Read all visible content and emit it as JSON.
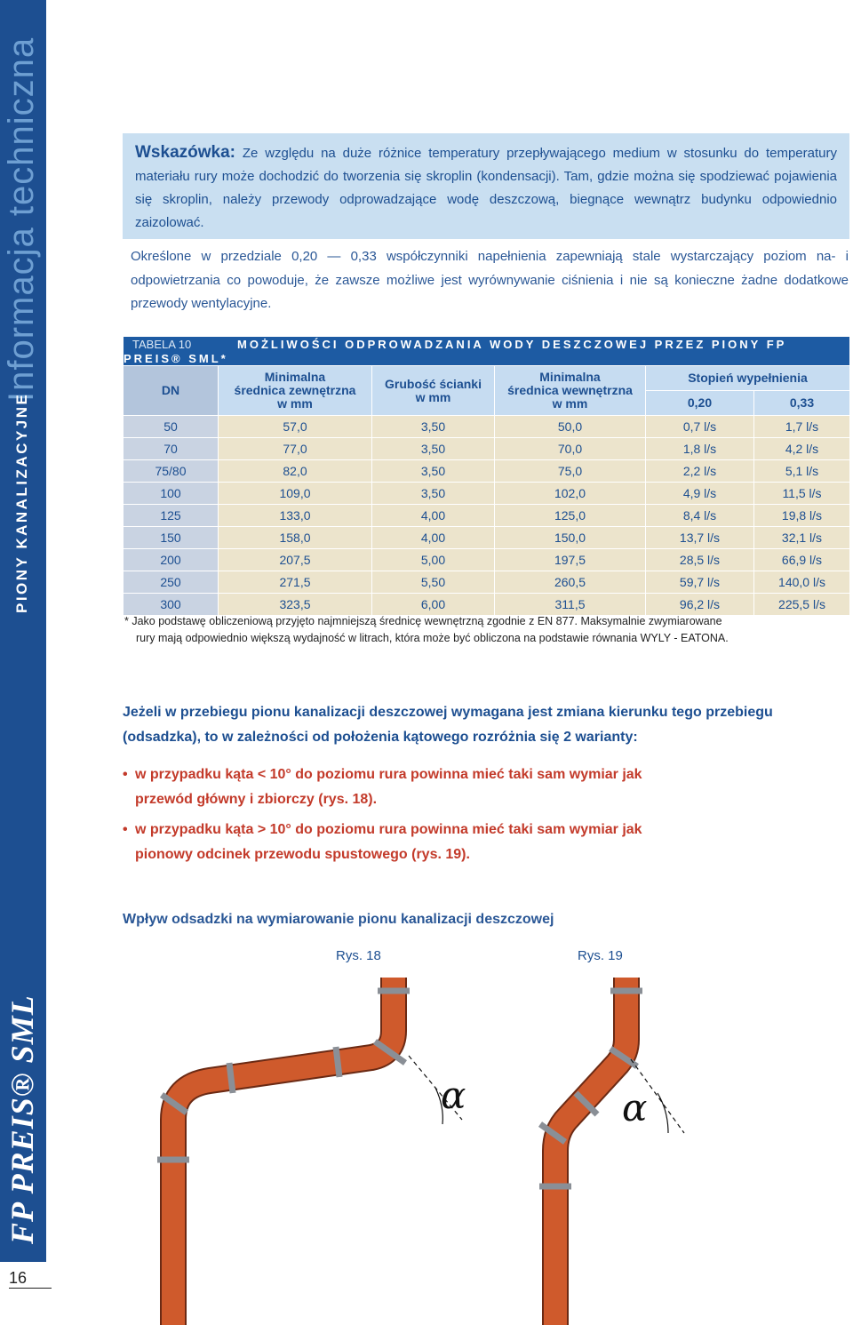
{
  "sidebar": {
    "section": "Informacja techniczna",
    "chapter": "PIONY KANALIZACYJNE",
    "brand": "FP PREIS® SML",
    "page": "16"
  },
  "note": {
    "label": "Wskazówka:",
    "text": "Ze względu na duże różnice temperatury przepływającego medium w stosunku do temperatury materiału rury może dochodzić do tworzenia się skroplin (kondensacji). Tam, gdzie można się spodziewać pojawienia się skroplin, należy przewody odprowadzające wodę deszczową, biegnące wewnątrz budynku odpowiednio zaizolować."
  },
  "intro": "Określone w przedziale 0,20 — 0,33 współczynniki napełnienia zapewniają stale wystarczający poziom na- i odpowietrzania co powoduje, że zawsze możliwe jest wyrównywanie ciśnienia i nie są konieczne żadne dodatkowe przewody wentylacyjne.",
  "table": {
    "label": "TABELA 10",
    "title": "MOŻLIWOŚCI ODPROWADZANIA WODY DESZCZOWEJ PRZEZ PIONY FP PREIS® SML*",
    "headers": {
      "dn": "DN",
      "outer": [
        "Minimalna",
        "średnica zewnętrzna",
        "w mm"
      ],
      "wall": [
        "Grubość ścianki",
        "w mm"
      ],
      "inner": [
        "Minimalna",
        "średnica wewnętrzna",
        "w mm"
      ],
      "fill": "Stopień wypełnienia",
      "fill_levels": [
        "0,20",
        "0,33"
      ]
    },
    "rows": [
      [
        "50",
        "57,0",
        "3,50",
        "50,0",
        "0,7 l/s",
        "1,7 l/s"
      ],
      [
        "70",
        "77,0",
        "3,50",
        "70,0",
        "1,8 l/s",
        "4,2 l/s"
      ],
      [
        "75/80",
        "82,0",
        "3,50",
        "75,0",
        "2,2 l/s",
        "5,1 l/s"
      ],
      [
        "100",
        "109,0",
        "3,50",
        "102,0",
        "4,9 l/s",
        "11,5 l/s"
      ],
      [
        "125",
        "133,0",
        "4,00",
        "125,0",
        "8,4 l/s",
        "19,8 l/s"
      ],
      [
        "150",
        "158,0",
        "4,00",
        "150,0",
        "13,7 l/s",
        "32,1 l/s"
      ],
      [
        "200",
        "207,5",
        "5,00",
        "197,5",
        "28,5 l/s",
        "66,9 l/s"
      ],
      [
        "250",
        "271,5",
        "5,50",
        "260,5",
        "59,7 l/s",
        "140,0 l/s"
      ],
      [
        "300",
        "323,5",
        "6,00",
        "311,5",
        "96,2 l/s",
        "225,5 l/s"
      ]
    ]
  },
  "footnote": [
    "* Jako podstawę obliczeniową przyjęto najmniejszą średnicę wewnętrzną zgodnie z EN 877. Maksymalnie zwymiarowane",
    "rury mają odpowiednio większą wydajność w litrach, która może być obliczona na podstawie równania WYLY - EATONA."
  ],
  "body": {
    "lead": "Jeżeli w przebiegu pionu kanalizacji deszczowej wymagana jest zmiana kierunku tego przebiegu (odsadzka), to w zależności od położenia kątowego rozróżnia się 2 warianty:",
    "bullets": [
      "w przypadku kąta < 10° do poziomu rura powinna mieć taki sam wymiar jak przewód główny i zbiorczy (rys. 18).",
      "w przypadku kąta > 10° do poziomu rura powinna mieć taki sam wymiar jak pionowy odcinek przewodu spustowego (rys. 19)."
    ]
  },
  "figures": {
    "title": "Wpływ odsadzki na wymiarowanie pionu kanalizacji deszczowej",
    "labels": [
      "Rys. 18",
      "Rys. 19"
    ],
    "angle": "α"
  }
}
